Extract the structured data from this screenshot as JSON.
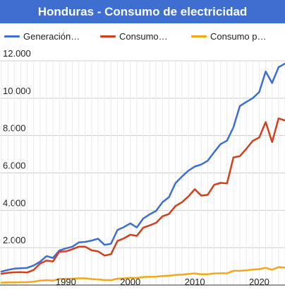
{
  "chart_data": {
    "type": "line",
    "title": "Honduras - Consumo de electricidad",
    "xlabel": "",
    "ylabel": "",
    "xlim": [
      1980,
      2024
    ],
    "ylim": [
      0,
      12000
    ],
    "y_ticks": [
      2000,
      4000,
      6000,
      8000,
      10000,
      12000
    ],
    "y_tick_labels": [
      "2.000",
      "4.000",
      "6.000",
      "8.000",
      "10.000",
      "12.000"
    ],
    "x_ticks": [
      1990,
      2000,
      2010,
      2020
    ],
    "x_tick_labels": [
      "1990",
      "2000",
      "2010",
      "2020"
    ],
    "grid": true,
    "legend_position": "top",
    "series": [
      {
        "name": "Generación…",
        "color": "#3d6ed0",
        "x": [
          1980,
          1981,
          1982,
          1983,
          1984,
          1985,
          1986,
          1987,
          1988,
          1989,
          1990,
          1991,
          1992,
          1993,
          1994,
          1995,
          1996,
          1997,
          1998,
          1999,
          2000,
          2001,
          2002,
          2003,
          2004,
          2005,
          2006,
          2007,
          2008,
          2009,
          2010,
          2011,
          2012,
          2013,
          2014,
          2015,
          2016,
          2017,
          2018,
          2019,
          2020,
          2021,
          2022,
          2023,
          2024
        ],
        "values": [
          720,
          810,
          880,
          900,
          920,
          1050,
          1250,
          1550,
          1450,
          1850,
          1960,
          2050,
          2280,
          2310,
          2380,
          2480,
          2150,
          2210,
          2950,
          3100,
          3300,
          3080,
          3560,
          3780,
          3970,
          4440,
          4700,
          5450,
          5800,
          6120,
          6340,
          6450,
          6650,
          7110,
          7540,
          7730,
          8440,
          9580,
          9800,
          10000,
          10330,
          11430,
          10810,
          11660,
          11850
        ]
      },
      {
        "name": "Consumo…",
        "color": "#d23f1b",
        "x": [
          1980,
          1981,
          1982,
          1983,
          1984,
          1985,
          1986,
          1987,
          1988,
          1989,
          1990,
          1991,
          1992,
          1993,
          1994,
          1995,
          1996,
          1997,
          1998,
          1999,
          2000,
          2001,
          2002,
          2003,
          2004,
          2005,
          2006,
          2007,
          2008,
          2009,
          2010,
          2011,
          2012,
          2013,
          2014,
          2015,
          2016,
          2017,
          2018,
          2019,
          2020,
          2021,
          2022,
          2023,
          2024
        ],
        "values": [
          600,
          660,
          680,
          690,
          670,
          810,
          1150,
          1310,
          1260,
          1790,
          1800,
          1920,
          2050,
          2050,
          1860,
          1800,
          1580,
          1650,
          2360,
          2500,
          2690,
          2630,
          3070,
          3190,
          3330,
          3680,
          3800,
          4230,
          4430,
          4740,
          5130,
          4790,
          4830,
          5360,
          5470,
          5440,
          6830,
          6900,
          7290,
          7720,
          7900,
          8720,
          7650,
          8920,
          8810
        ]
      },
      {
        "name": "Consumo p…",
        "color": "#f4a71b",
        "x": [
          1980,
          1981,
          1982,
          1983,
          1984,
          1985,
          1986,
          1987,
          1988,
          1989,
          1990,
          1991,
          1992,
          1993,
          1994,
          1995,
          1996,
          1997,
          1998,
          1999,
          2000,
          2001,
          2002,
          2003,
          2004,
          2005,
          2006,
          2007,
          2008,
          2009,
          2010,
          2011,
          2012,
          2013,
          2014,
          2015,
          2016,
          2017,
          2018,
          2019,
          2020,
          2021,
          2022,
          2023,
          2024
        ],
        "values": [
          130,
          140,
          140,
          150,
          150,
          180,
          240,
          260,
          240,
          330,
          330,
          340,
          360,
          360,
          320,
          300,
          270,
          260,
          340,
          360,
          390,
          380,
          430,
          440,
          450,
          480,
          500,
          540,
          560,
          590,
          620,
          580,
          580,
          620,
          630,
          630,
          760,
          760,
          790,
          830,
          850,
          920,
          820,
          960,
          940
        ]
      }
    ]
  }
}
